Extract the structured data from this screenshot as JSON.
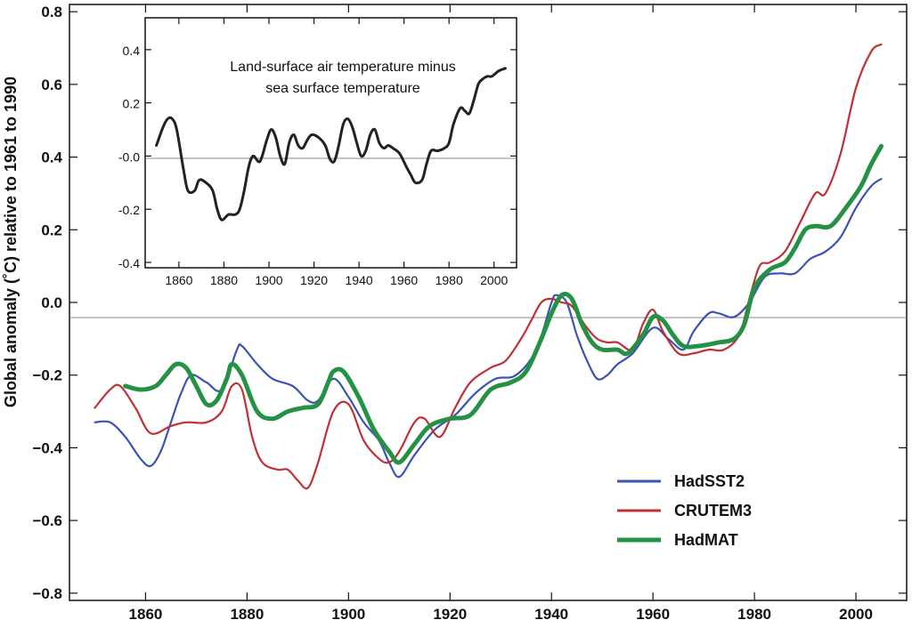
{
  "chart_data": [
    {
      "type": "line",
      "ylabel": "Global anomaly (˚C)   relative to 1961 to 1990",
      "xlim": [
        1845,
        2010
      ],
      "ylim": [
        -0.82,
        0.82
      ],
      "x_ticks": [
        1860,
        1880,
        1900,
        1920,
        1940,
        1960,
        1980,
        2000
      ],
      "y_ticks": [
        -0.8,
        -0.6,
        -0.4,
        -0.2,
        0.0,
        0.2,
        0.4,
        0.6,
        0.8
      ],
      "x_tick_labels": [
        "1860",
        "1880",
        "1900",
        "1920",
        "1940",
        "1960",
        "1980",
        "2000"
      ],
      "y_tick_labels": [
        "−0.8",
        "−0.6",
        "−0.4",
        "−0.2",
        "0.0",
        "0.2",
        "0.4",
        "0.6",
        "0.8"
      ],
      "zero_line": true,
      "legend_position": "bottom-right",
      "series": [
        {
          "name": "HadSST2",
          "color": "#3a53b4",
          "x": [
            1850,
            1853,
            1856,
            1859,
            1861,
            1863,
            1865,
            1867,
            1869,
            1872,
            1875,
            1878,
            1879,
            1882,
            1885,
            1889,
            1892,
            1894,
            1897,
            1900,
            1903,
            1906,
            1908,
            1910,
            1913,
            1917,
            1921,
            1925,
            1929,
            1933,
            1937,
            1940,
            1941,
            1943,
            1945,
            1947,
            1949,
            1951,
            1953,
            1956,
            1960,
            1963,
            1966,
            1968,
            1971,
            1973,
            1976,
            1979,
            1982,
            1985,
            1988,
            1991,
            1994,
            1997,
            2000,
            2003,
            2005
          ],
          "values": [
            -0.33,
            -0.33,
            -0.37,
            -0.43,
            -0.45,
            -0.41,
            -0.33,
            -0.25,
            -0.2,
            -0.22,
            -0.24,
            -0.13,
            -0.12,
            -0.17,
            -0.21,
            -0.23,
            -0.27,
            -0.27,
            -0.21,
            -0.26,
            -0.33,
            -0.38,
            -0.44,
            -0.48,
            -0.42,
            -0.35,
            -0.31,
            -0.25,
            -0.21,
            -0.2,
            -0.13,
            0.0,
            0.02,
            0.0,
            -0.09,
            -0.16,
            -0.21,
            -0.2,
            -0.17,
            -0.14,
            -0.07,
            -0.1,
            -0.13,
            -0.08,
            -0.03,
            -0.03,
            -0.04,
            0.0,
            0.07,
            0.08,
            0.08,
            0.12,
            0.14,
            0.18,
            0.26,
            0.32,
            0.34
          ]
        },
        {
          "name": "CRUTEM3",
          "color": "#c03035",
          "x": [
            1850,
            1853,
            1855,
            1858,
            1861,
            1865,
            1868,
            1872,
            1875,
            1877,
            1879,
            1881,
            1883,
            1886,
            1888,
            1890,
            1892,
            1894,
            1897,
            1900,
            1903,
            1906,
            1908,
            1910,
            1913,
            1915,
            1918,
            1921,
            1924,
            1928,
            1931,
            1934,
            1936,
            1938,
            1940,
            1942,
            1944,
            1947,
            1949,
            1951,
            1953,
            1956,
            1958,
            1960,
            1962,
            1965,
            1968,
            1971,
            1974,
            1977,
            1979,
            1981,
            1983,
            1986,
            1989,
            1992,
            1994,
            1997,
            2000,
            2003,
            2005
          ],
          "values": [
            -0.29,
            -0.24,
            -0.23,
            -0.29,
            -0.36,
            -0.34,
            -0.33,
            -0.33,
            -0.3,
            -0.23,
            -0.24,
            -0.37,
            -0.44,
            -0.46,
            -0.46,
            -0.49,
            -0.51,
            -0.44,
            -0.3,
            -0.28,
            -0.38,
            -0.43,
            -0.44,
            -0.41,
            -0.33,
            -0.32,
            -0.37,
            -0.29,
            -0.22,
            -0.18,
            -0.16,
            -0.1,
            -0.05,
            0.0,
            0.01,
            0.0,
            -0.01,
            -0.07,
            -0.1,
            -0.11,
            -0.11,
            -0.13,
            -0.06,
            -0.02,
            -0.08,
            -0.14,
            -0.14,
            -0.13,
            -0.13,
            -0.09,
            0.01,
            0.1,
            0.11,
            0.14,
            0.22,
            0.3,
            0.3,
            0.41,
            0.59,
            0.69,
            0.71
          ]
        },
        {
          "name": "HadMAT",
          "color": "#259145",
          "x": [
            1856,
            1859,
            1862,
            1864,
            1866,
            1868,
            1870,
            1872,
            1874,
            1876,
            1877,
            1879,
            1882,
            1885,
            1888,
            1891,
            1894,
            1896,
            1897,
            1899,
            1902,
            1905,
            1908,
            1910,
            1913,
            1916,
            1920,
            1924,
            1928,
            1932,
            1935,
            1938,
            1940,
            1942,
            1944,
            1946,
            1948,
            1950,
            1953,
            1955,
            1958,
            1960,
            1962,
            1964,
            1966,
            1969,
            1973,
            1976,
            1978,
            1980,
            1983,
            1986,
            1988,
            1990,
            1992,
            1995,
            1998,
            2001,
            2003,
            2005
          ],
          "values": [
            -0.23,
            -0.24,
            -0.23,
            -0.2,
            -0.17,
            -0.18,
            -0.23,
            -0.28,
            -0.27,
            -0.21,
            -0.17,
            -0.2,
            -0.3,
            -0.32,
            -0.3,
            -0.29,
            -0.28,
            -0.22,
            -0.19,
            -0.19,
            -0.26,
            -0.35,
            -0.41,
            -0.44,
            -0.39,
            -0.34,
            -0.32,
            -0.31,
            -0.24,
            -0.22,
            -0.19,
            -0.1,
            -0.03,
            0.02,
            0.01,
            -0.06,
            -0.11,
            -0.13,
            -0.13,
            -0.14,
            -0.09,
            -0.04,
            -0.05,
            -0.09,
            -0.12,
            -0.12,
            -0.11,
            -0.1,
            -0.06,
            0.04,
            0.09,
            0.11,
            0.15,
            0.2,
            0.21,
            0.21,
            0.26,
            0.32,
            0.38,
            0.43
          ]
        }
      ]
    },
    {
      "type": "line",
      "title_lines": [
        "Land-surface air temperature minus",
        "sea surface temperature"
      ],
      "xlim": [
        1845,
        2010
      ],
      "ylim": [
        -0.42,
        0.52
      ],
      "x_ticks": [
        1860,
        1880,
        1900,
        1920,
        1940,
        1960,
        1980,
        2000
      ],
      "y_ticks": [
        -0.4,
        -0.2,
        0.0,
        0.2,
        0.4
      ],
      "x_tick_labels": [
        "1860",
        "1880",
        "1900",
        "1920",
        "1940",
        "1960",
        "1980",
        "2000"
      ],
      "y_tick_labels": [
        "-0.4",
        "-0.2",
        "-0.0",
        "0.2",
        "0.4"
      ],
      "zero_line": true,
      "series": [
        {
          "color": "#222222",
          "x": [
            1850,
            1853,
            1855,
            1857,
            1859,
            1862,
            1864,
            1867,
            1869,
            1872,
            1875,
            1877,
            1879,
            1882,
            1885,
            1887,
            1889,
            1891,
            1893,
            1896,
            1899,
            1901,
            1903,
            1905,
            1907,
            1909,
            1911,
            1913,
            1915,
            1917,
            1919,
            1922,
            1925,
            1927,
            1929,
            1931,
            1933,
            1935,
            1937,
            1939,
            1941,
            1943,
            1945,
            1947,
            1949,
            1951,
            1953,
            1955,
            1958,
            1961,
            1963,
            1965,
            1968,
            1970,
            1972,
            1975,
            1978,
            1980,
            1982,
            1985,
            1987,
            1989,
            1991,
            1993,
            1995,
            1997,
            1999,
            2002,
            2005
          ],
          "values": [
            0.04,
            0.11,
            0.14,
            0.14,
            0.1,
            -0.05,
            -0.13,
            -0.13,
            -0.09,
            -0.1,
            -0.13,
            -0.2,
            -0.24,
            -0.22,
            -0.22,
            -0.2,
            -0.13,
            -0.04,
            0.0,
            -0.02,
            0.06,
            0.1,
            0.07,
            0.0,
            -0.03,
            0.05,
            0.08,
            0.04,
            0.03,
            0.06,
            0.08,
            0.07,
            0.04,
            -0.01,
            -0.02,
            0.04,
            0.12,
            0.14,
            0.11,
            0.05,
            0.0,
            0.02,
            0.08,
            0.1,
            0.05,
            0.03,
            0.04,
            0.03,
            0.01,
            -0.04,
            -0.07,
            -0.1,
            -0.09,
            -0.03,
            0.02,
            0.02,
            0.03,
            0.05,
            0.12,
            0.18,
            0.17,
            0.16,
            0.21,
            0.27,
            0.29,
            0.3,
            0.3,
            0.32,
            0.33
          ]
        }
      ]
    }
  ]
}
